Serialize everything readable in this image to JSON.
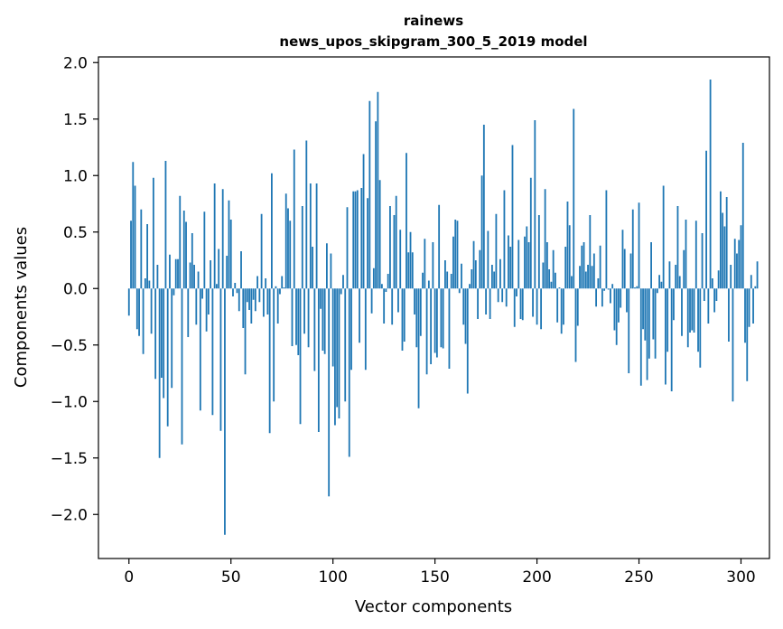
{
  "chart_data": {
    "type": "bar",
    "title": "rainews",
    "subtitle": "news_upos_skipgram_300_5_2019 model",
    "xlabel": "Vector components",
    "ylabel": "Components values",
    "xlim": [
      -14.95,
      313.95
    ],
    "ylim": [
      -2.39,
      2.05
    ],
    "xticks": [
      0,
      50,
      100,
      150,
      200,
      250,
      300
    ],
    "xtick_labels": [
      "0",
      "50",
      "100",
      "150",
      "200",
      "250",
      "300"
    ],
    "yticks": [
      -2.0,
      -1.5,
      -1.0,
      -0.5,
      0.0,
      0.5,
      1.0,
      1.5,
      2.0
    ],
    "ytick_labels": [
      "−2.0",
      "−1.5",
      "−1.0",
      "−0.5",
      "0.0",
      "0.5",
      "1.0",
      "1.5",
      "2.0"
    ],
    "bar_color": "#1f77b4",
    "values": [
      -0.24,
      0.6,
      1.12,
      0.91,
      -0.36,
      -0.42,
      0.7,
      -0.58,
      0.09,
      0.57,
      0.07,
      -0.4,
      0.98,
      -0.8,
      0.21,
      -1.5,
      -0.79,
      -0.97,
      1.13,
      -1.22,
      0.3,
      -0.88,
      -0.06,
      0.26,
      0.26,
      0.82,
      -1.38,
      0.69,
      0.59,
      -0.43,
      0.23,
      0.49,
      0.21,
      -0.32,
      0.15,
      -1.08,
      -0.09,
      0.68,
      -0.38,
      -0.23,
      0.25,
      -1.12,
      0.93,
      0.04,
      0.35,
      -1.26,
      0.88,
      -2.18,
      0.29,
      0.78,
      0.61,
      -0.07,
      0.05,
      -0.04,
      -0.2,
      0.33,
      -0.35,
      -0.76,
      -0.12,
      -0.19,
      -0.31,
      -0.1,
      -0.2,
      0.11,
      -0.12,
      0.66,
      -0.25,
      0.09,
      -0.23,
      -1.28,
      1.02,
      -1.0,
      0.02,
      -0.31,
      -0.05,
      0.11,
      0.01,
      0.84,
      0.71,
      0.6,
      -0.51,
      1.23,
      -0.5,
      -0.59,
      -1.2,
      0.73,
      -0.4,
      1.31,
      -0.52,
      0.93,
      0.37,
      -0.73,
      0.93,
      -1.27,
      -0.18,
      -0.55,
      -0.58,
      0.4,
      -1.84,
      0.31,
      -0.69,
      -1.21,
      -1.05,
      -1.15,
      -0.05,
      0.12,
      -1.0,
      0.72,
      -1.49,
      -0.72,
      0.86,
      0.86,
      0.87,
      -0.48,
      0.89,
      1.19,
      -0.72,
      0.8,
      1.66,
      -0.22,
      0.18,
      1.48,
      1.74,
      0.96,
      0.04,
      -0.31,
      -0.03,
      0.13,
      0.73,
      -0.32,
      0.65,
      0.82,
      -0.21,
      0.52,
      -0.55,
      -0.47,
      1.2,
      0.32,
      0.5,
      0.32,
      -0.23,
      -0.52,
      -1.06,
      -0.42,
      0.14,
      0.44,
      -0.76,
      0.07,
      -0.67,
      0.41,
      -0.57,
      -0.61,
      0.74,
      -0.52,
      -0.53,
      0.25,
      0.15,
      -0.71,
      0.13,
      0.46,
      0.61,
      0.6,
      -0.04,
      0.22,
      -0.32,
      -0.49,
      -0.93,
      0.04,
      0.17,
      0.42,
      0.25,
      -0.27,
      0.34,
      1.0,
      1.45,
      -0.23,
      0.51,
      -0.27,
      0.21,
      0.15,
      0.66,
      -0.12,
      0.26,
      -0.12,
      0.87,
      -0.16,
      0.47,
      0.37,
      1.27,
      -0.34,
      -0.07,
      0.43,
      -0.27,
      -0.28,
      0.46,
      0.55,
      0.41,
      0.98,
      -0.25,
      1.49,
      -0.32,
      0.65,
      -0.36,
      0.23,
      0.88,
      0.41,
      0.17,
      0.06,
      0.34,
      0.14,
      -0.3,
      0.01,
      -0.4,
      -0.32,
      0.37,
      0.77,
      0.56,
      0.11,
      1.59,
      -0.65,
      -0.33,
      0.2,
      0.38,
      0.41,
      0.15,
      0.21,
      0.65,
      0.2,
      0.31,
      -0.16,
      0.09,
      0.38,
      -0.16,
      -0.02,
      0.87,
      -0.01,
      -0.13,
      0.04,
      -0.37,
      -0.5,
      -0.3,
      -0.17,
      0.52,
      0.35,
      -0.21,
      -0.75,
      0.31,
      0.7,
      0.01,
      0.02,
      0.76,
      -0.86,
      -0.36,
      -0.46,
      -0.81,
      -0.62,
      0.41,
      -0.45,
      -0.62,
      -0.04,
      0.12,
      0.06,
      0.91,
      -0.85,
      -0.56,
      0.24,
      -0.91,
      -0.28,
      0.21,
      0.73,
      0.11,
      -0.42,
      0.34,
      0.61,
      -0.52,
      -0.39,
      -0.37,
      -0.39,
      0.6,
      -0.56,
      -0.7,
      0.49,
      -0.11,
      1.22,
      -0.31,
      1.85,
      0.09,
      -0.21,
      -0.11,
      0.16,
      0.86,
      0.67,
      0.55,
      0.81,
      -0.47,
      0.21,
      -1.0,
      0.44,
      0.31,
      0.43,
      0.56,
      1.29,
      -0.48,
      -0.82,
      -0.34,
      0.12,
      -0.31,
      0.02,
      0.24
    ]
  }
}
